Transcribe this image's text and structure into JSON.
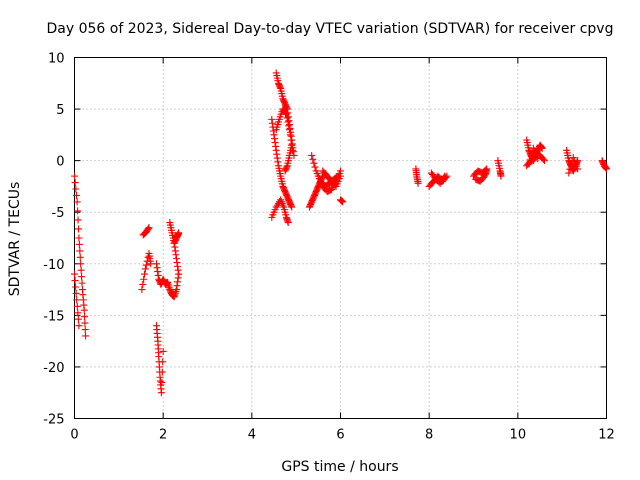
{
  "chart_data": {
    "type": "scatter",
    "title": "Day 056 of 2023, Sidereal Day-to-day VTEC variation (SDTVAR) for receiver cpvg",
    "xlabel": "GPS time / hours",
    "ylabel": "SDTVAR / TECUs",
    "xlim": [
      0,
      12
    ],
    "ylim": [
      -25,
      10
    ],
    "xticks": [
      0,
      2,
      4,
      6,
      8,
      10,
      12
    ],
    "yticks": [
      10,
      5,
      0,
      -5,
      -10,
      -15,
      -20,
      -25
    ],
    "grid": true,
    "marker": "+",
    "color": "#ff0000",
    "series": [
      {
        "name": "SDTVAR",
        "segments": [
          {
            "x": [
              0.0,
              0.06,
              0.1,
              0.14,
              0.18,
              0.22,
              0.25
            ],
            "y": [
              -1.5,
              -4.0,
              -7.5,
              -10.0,
              -12.5,
              -14.5,
              -17.0
            ]
          },
          {
            "x": [
              0.0,
              0.05,
              0.1
            ],
            "y": [
              -11.0,
              -13.5,
              -16.0
            ]
          },
          {
            "x": [
              1.52,
              1.6,
              1.68,
              1.72
            ],
            "y": [
              -12.5,
              -10.5,
              -9.0,
              -10.0
            ]
          },
          {
            "x": [
              1.55,
              1.62,
              1.68
            ],
            "y": [
              -7.2,
              -6.9,
              -6.5
            ]
          },
          {
            "x": [
              1.85,
              1.9,
              1.95,
              2.0,
              2.05,
              2.1,
              2.15,
              2.2,
              2.25,
              2.3,
              2.35
            ],
            "y": [
              -10.0,
              -11.5,
              -12.0,
              -11.5,
              -12.0,
              -11.8,
              -12.5,
              -13.0,
              -13.2,
              -12.5,
              -11.0
            ]
          },
          {
            "x": [
              1.85,
              1.88,
              1.9,
              1.93,
              1.96,
              2.0
            ],
            "y": [
              -16.0,
              -17.5,
              -19.0,
              -21.0,
              -22.5,
              -18.5
            ]
          },
          {
            "x": [
              2.15,
              2.2,
              2.25,
              2.3,
              2.35
            ],
            "y": [
              -6.0,
              -7.0,
              -8.0,
              -9.5,
              -11.0
            ]
          },
          {
            "x": [
              2.25,
              2.3,
              2.33,
              2.35
            ],
            "y": [
              -8.0,
              -7.5,
              -7.2,
              -7.0
            ]
          },
          {
            "x": [
              4.45,
              4.55,
              4.65,
              4.72,
              4.78,
              4.82
            ],
            "y": [
              -5.5,
              -4.5,
              -3.8,
              -4.5,
              -5.5,
              -6.0
            ]
          },
          {
            "x": [
              4.45,
              4.5,
              4.55,
              4.6,
              4.65,
              4.7,
              4.75,
              4.8,
              4.85,
              4.9
            ],
            "y": [
              4.0,
              2.5,
              1.0,
              -0.5,
              -1.5,
              -2.5,
              -3.0,
              -3.5,
              -4.0,
              -4.5
            ]
          },
          {
            "x": [
              4.55,
              4.6,
              4.65,
              4.7,
              4.75,
              4.8,
              4.85,
              4.9,
              4.95
            ],
            "y": [
              8.5,
              7.5,
              7.0,
              6.0,
              5.5,
              5.0,
              3.5,
              2.0,
              0.5
            ]
          },
          {
            "x": [
              4.55,
              4.62,
              4.7,
              4.78,
              4.85,
              4.92
            ],
            "y": [
              3.0,
              4.0,
              5.0,
              4.5,
              3.0,
              1.0
            ]
          },
          {
            "x": [
              4.75,
              4.8,
              4.85,
              4.9
            ],
            "y": [
              -1.0,
              -0.5,
              0.5,
              1.5
            ]
          },
          {
            "x": [
              5.3,
              5.35,
              5.4,
              5.45,
              5.5,
              5.55,
              5.6
            ],
            "y": [
              -4.5,
              -4.0,
              -3.5,
              -3.0,
              -2.5,
              -2.0,
              -1.5
            ]
          },
          {
            "x": [
              5.35,
              5.45,
              5.55,
              5.65,
              5.75,
              5.85,
              5.95
            ],
            "y": [
              0.5,
              -1.0,
              -2.0,
              -2.5,
              -2.2,
              -1.8,
              -1.5
            ]
          },
          {
            "x": [
              5.5,
              5.6,
              5.7,
              5.8,
              5.9,
              6.0
            ],
            "y": [
              -1.5,
              -2.5,
              -3.0,
              -2.8,
              -2.0,
              -1.0
            ]
          },
          {
            "x": [
              5.6,
              5.7,
              5.8,
              5.9,
              6.0
            ],
            "y": [
              -1.0,
              -1.5,
              -2.0,
              -2.5,
              -1.5
            ]
          },
          {
            "x": [
              6.0,
              6.05
            ],
            "y": [
              -3.8,
              -4.0
            ]
          },
          {
            "x": [
              7.7,
              7.72,
              7.75
            ],
            "y": [
              -0.8,
              -1.5,
              -2.2
            ]
          },
          {
            "x": [
              8.0,
              8.1,
              8.2,
              8.3,
              8.4
            ],
            "y": [
              -2.5,
              -2.0,
              -1.5,
              -2.0,
              -1.5
            ]
          },
          {
            "x": [
              8.05,
              8.15,
              8.25,
              8.35
            ],
            "y": [
              -1.2,
              -1.8,
              -2.2,
              -1.5
            ]
          },
          {
            "x": [
              9.0,
              9.1,
              9.2,
              9.3
            ],
            "y": [
              -1.5,
              -1.0,
              -1.2,
              -0.8
            ]
          },
          {
            "x": [
              9.05,
              9.15,
              9.25,
              9.3
            ],
            "y": [
              -1.8,
              -2.0,
              -1.5,
              -1.0
            ]
          },
          {
            "x": [
              9.55,
              9.6,
              9.62
            ],
            "y": [
              0.0,
              -1.0,
              -1.5
            ]
          },
          {
            "x": [
              10.2,
              10.25,
              10.3,
              10.35,
              10.4,
              10.45,
              10.5,
              10.55
            ],
            "y": [
              2.0,
              1.0,
              0.5,
              0.0,
              0.5,
              1.0,
              1.5,
              1.2
            ]
          },
          {
            "x": [
              10.2,
              10.3,
              10.4,
              10.5,
              10.6
            ],
            "y": [
              -0.5,
              0.0,
              0.8,
              0.5,
              0.0
            ]
          },
          {
            "x": [
              10.25,
              10.35,
              10.45
            ],
            "y": [
              -0.3,
              1.2,
              0.2
            ]
          },
          {
            "x": [
              11.1,
              11.15,
              11.2,
              11.25,
              11.3,
              11.35
            ],
            "y": [
              1.0,
              0.0,
              -0.5,
              -1.0,
              -0.5,
              0.0
            ]
          },
          {
            "x": [
              11.15,
              11.25,
              11.35
            ],
            "y": [
              -1.2,
              0.3,
              -0.8
            ]
          },
          {
            "x": [
              11.9,
              11.95,
              12.0
            ],
            "y": [
              0.0,
              -0.5,
              -0.8
            ]
          }
        ]
      }
    ]
  }
}
